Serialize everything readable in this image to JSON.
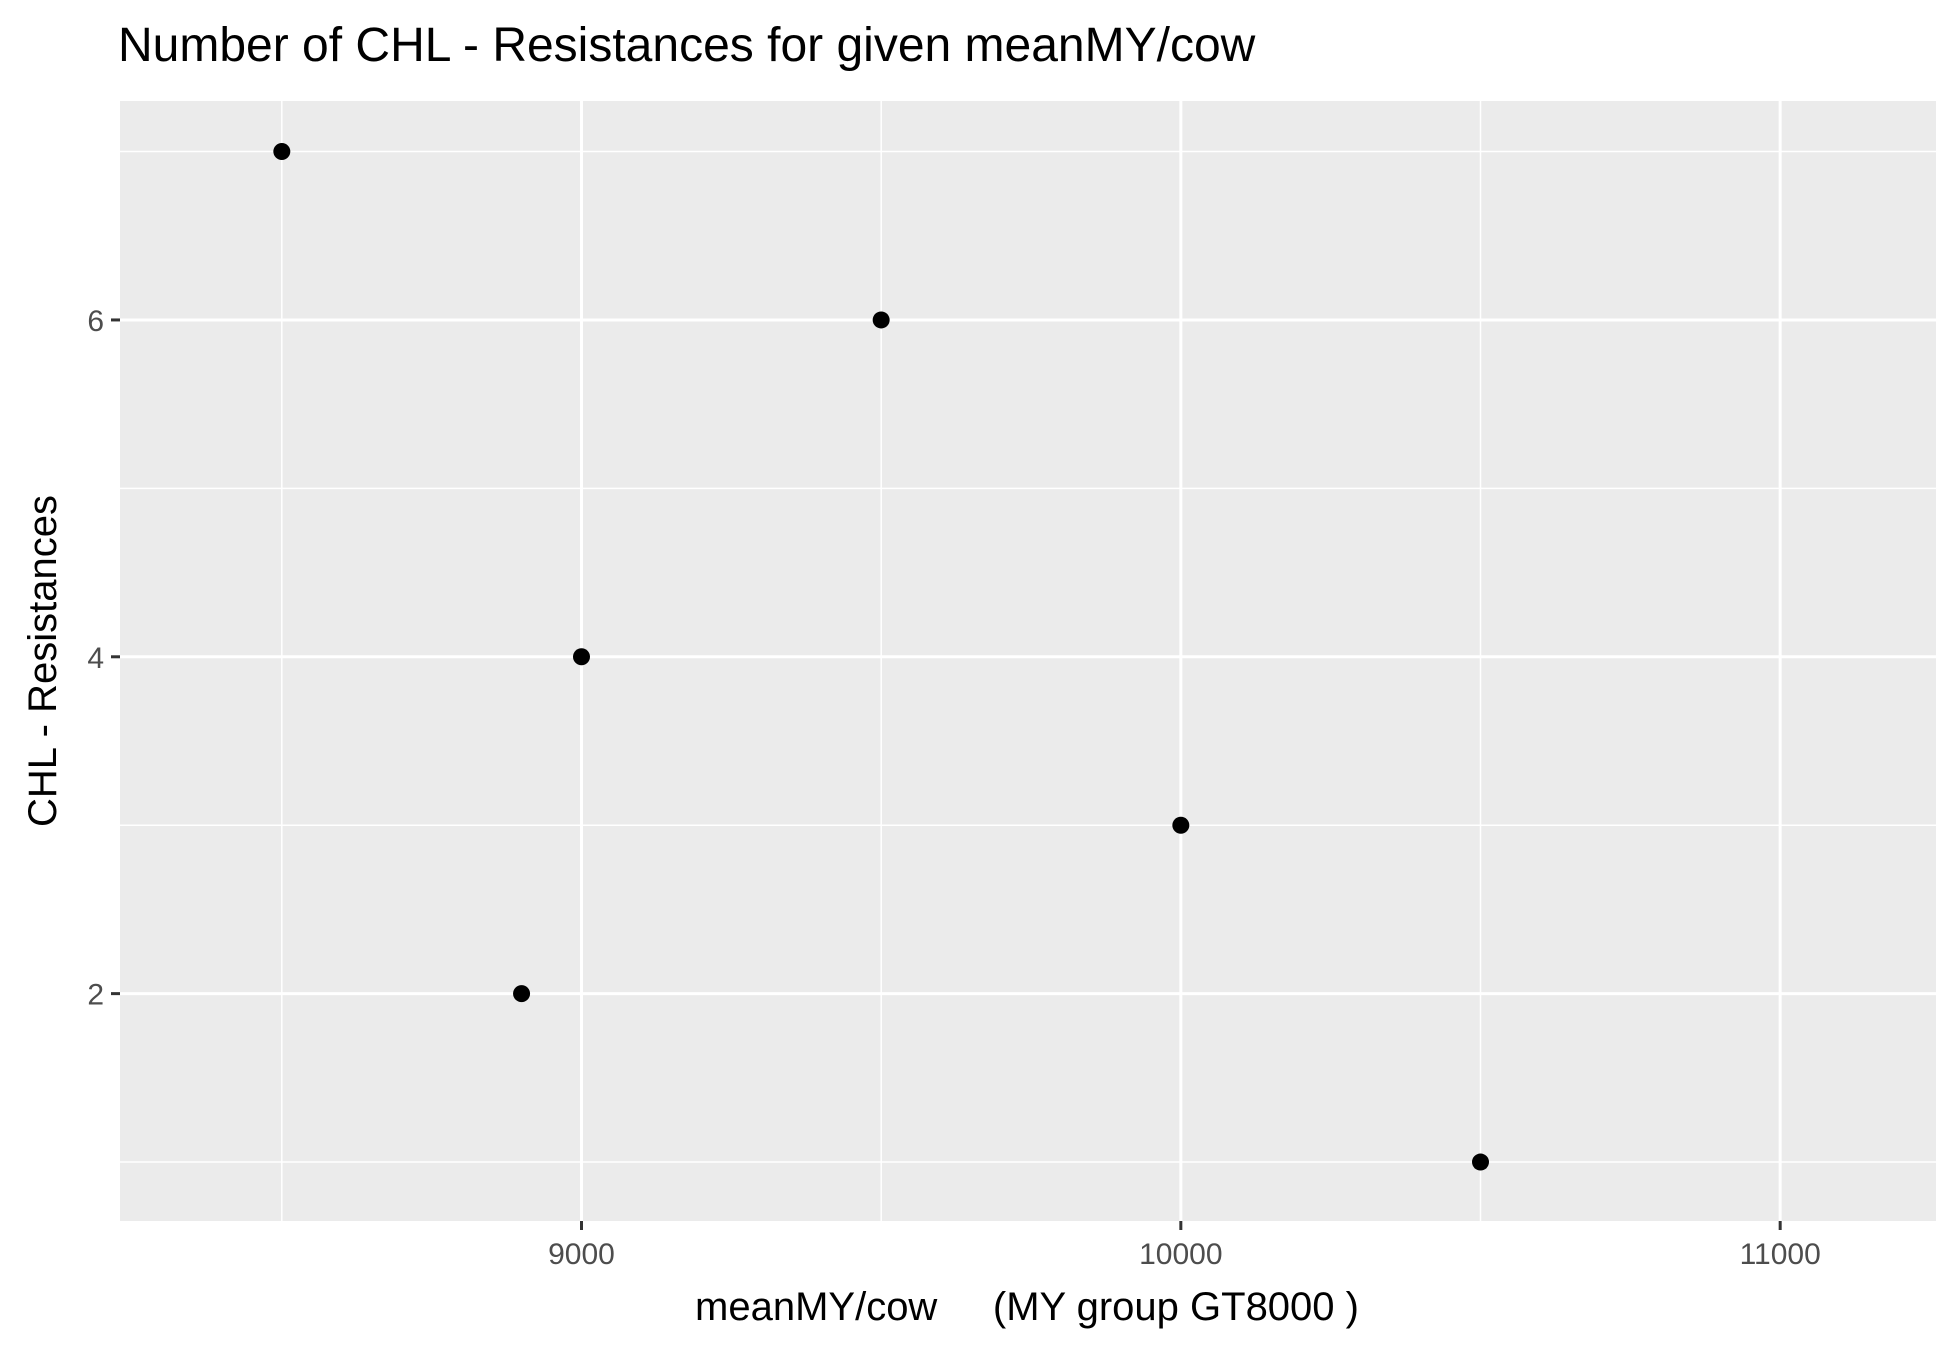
{
  "chart_data": {
    "type": "scatter",
    "title": "Number of CHL - Resistances for given meanMY/cow",
    "xlabel": "meanMY/cow     (MY group GT8000 )",
    "ylabel": "CHL - Resistances",
    "xlim": [
      8230,
      11260
    ],
    "ylim": [
      0.65,
      7.3
    ],
    "x_ticks": [
      9000,
      10000,
      11000
    ],
    "x_tick_labels": [
      "9000",
      "10000",
      "11000"
    ],
    "x_minor_ticks": [
      8500,
      9500,
      10500
    ],
    "y_ticks": [
      2,
      4,
      6
    ],
    "y_tick_labels": [
      "2",
      "4",
      "6"
    ],
    "y_minor_ticks": [
      1,
      3,
      5,
      7
    ],
    "grid": true,
    "background": "#ebebeb",
    "grid_color": "#ffffff",
    "point_color": "#000000",
    "series": [
      {
        "x": [
          8500,
          8900,
          9000,
          9500,
          10000,
          10500
        ],
        "y": [
          7,
          2,
          4,
          6,
          3,
          1
        ]
      }
    ]
  }
}
